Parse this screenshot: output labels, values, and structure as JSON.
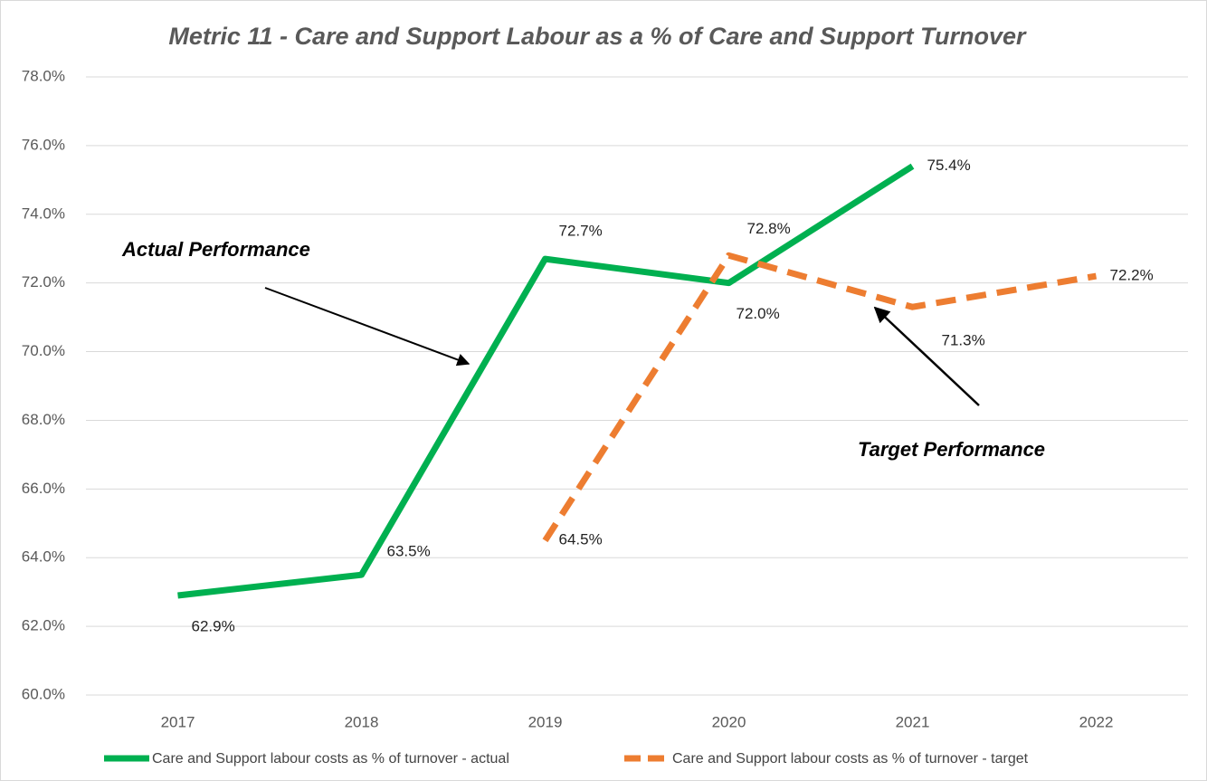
{
  "chart_data": {
    "type": "line",
    "title": "Metric 11 - Care and Support Labour as a % of Care and Support Turnover",
    "categories": [
      "2017",
      "2018",
      "2019",
      "2020",
      "2021",
      "2022"
    ],
    "series": [
      {
        "name": "Care and Support labour costs as % of turnover - actual",
        "color": "#00b050",
        "dashed": false,
        "values": [
          62.9,
          63.5,
          72.7,
          72.0,
          75.4,
          null
        ],
        "value_labels": [
          "62.9%",
          "63.5%",
          "72.7%",
          "72.0%",
          "75.4%",
          null
        ]
      },
      {
        "name": "Care and Support labour costs as % of turnover - target",
        "color": "#ed7d31",
        "dashed": true,
        "values": [
          null,
          null,
          64.5,
          72.8,
          71.3,
          72.2
        ],
        "value_labels": [
          null,
          null,
          "64.5%",
          "72.8%",
          "71.3%",
          "72.2%"
        ]
      }
    ],
    "ylim": [
      60,
      78
    ],
    "yticks": [
      {
        "value": 60,
        "label": "60.0%"
      },
      {
        "value": 62,
        "label": "62.0%"
      },
      {
        "value": 64,
        "label": "64.0%"
      },
      {
        "value": 66,
        "label": "66.0%"
      },
      {
        "value": 68,
        "label": "68.0%"
      },
      {
        "value": 70,
        "label": "70.0%"
      },
      {
        "value": 72,
        "label": "72.0%"
      },
      {
        "value": 74,
        "label": "74.0%"
      },
      {
        "value": 76,
        "label": "76.0%"
      },
      {
        "value": 78,
        "label": "78.0%"
      }
    ],
    "grid": true,
    "annotations": [
      "Actual Performance",
      "Target Performance"
    ]
  }
}
